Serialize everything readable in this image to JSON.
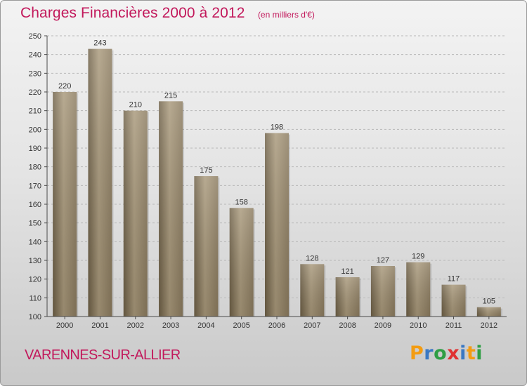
{
  "header": {
    "title": "Charges Financières 2000 à 2012",
    "subtitle": "(en milliers d'€)"
  },
  "footer": {
    "commune": "VARENNES-SUR-ALLIER",
    "logo_text": "Proxiti",
    "logo_letters": [
      "P",
      "r",
      "o",
      "x",
      "i",
      "t",
      "i"
    ],
    "logo_colors": [
      "#f39c12",
      "#3a78c3",
      "#2f9e44",
      "#e03131",
      "#3a78c3",
      "#f39c12",
      "#2f9e44"
    ]
  },
  "colors": {
    "bar": "#8a7a5e",
    "bar_light": "#a8987a",
    "bar_dark": "#6d5f46",
    "accent": "#c2185b",
    "grid": "#b8b8b8",
    "axis": "#4a4a4a"
  },
  "chart_data": {
    "type": "bar",
    "title": "Charges Financières 2000 à 2012",
    "subtitle": "(en milliers d'€)",
    "categories": [
      "2000",
      "2001",
      "2002",
      "2003",
      "2004",
      "2005",
      "2006",
      "2007",
      "2008",
      "2009",
      "2010",
      "2011",
      "2012"
    ],
    "values": [
      220,
      243,
      210,
      215,
      175,
      158,
      198,
      128,
      121,
      127,
      129,
      117,
      105
    ],
    "ylim": [
      100,
      250
    ],
    "yticks": [
      100,
      110,
      120,
      130,
      140,
      150,
      160,
      170,
      180,
      190,
      200,
      210,
      220,
      230,
      240,
      250
    ],
    "grid": true,
    "data_labels": true
  }
}
